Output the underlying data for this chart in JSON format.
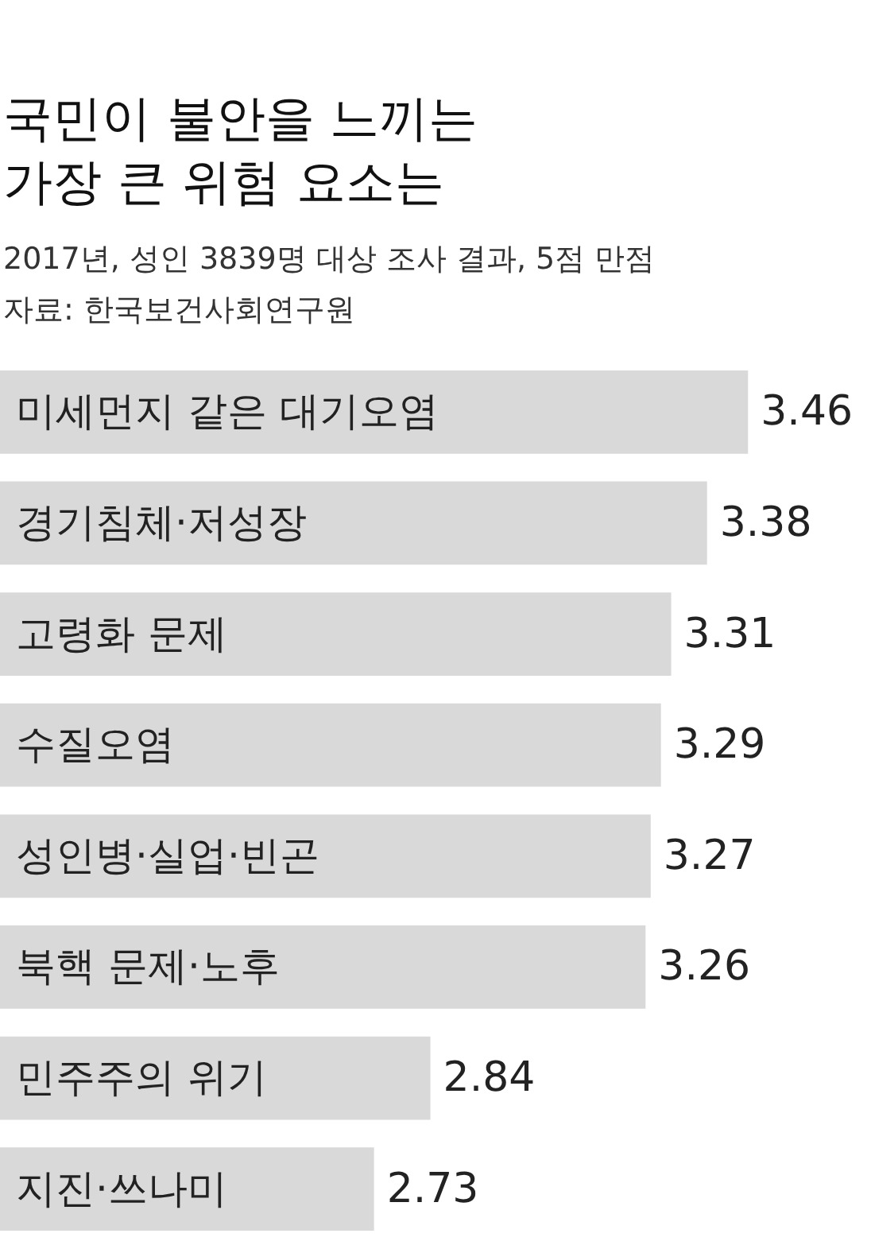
{
  "chart_data": {
    "type": "bar",
    "orientation": "horizontal",
    "title": "국민이 불안을 느끼는\n가장 큰 위험 요소는",
    "subtitle": "2017년, 성인 3839명 대상 조사 결과, 5점 만점",
    "annotations": [
      "자료: 한국보건사회연구원"
    ],
    "categories": [
      "미세먼지 같은 대기오염",
      "경기침체·저성장",
      "고령화 문제",
      "수질오염",
      "성인병·실업·빈곤",
      "북핵 문제·노후",
      "민주주의 위기",
      "지진·쓰나미"
    ],
    "values": [
      3.46,
      3.38,
      3.31,
      3.29,
      3.27,
      3.26,
      2.84,
      2.73
    ],
    "color": "#d9d9d9",
    "xlim": [
      2,
      3.7
    ],
    "data_labels": true
  }
}
